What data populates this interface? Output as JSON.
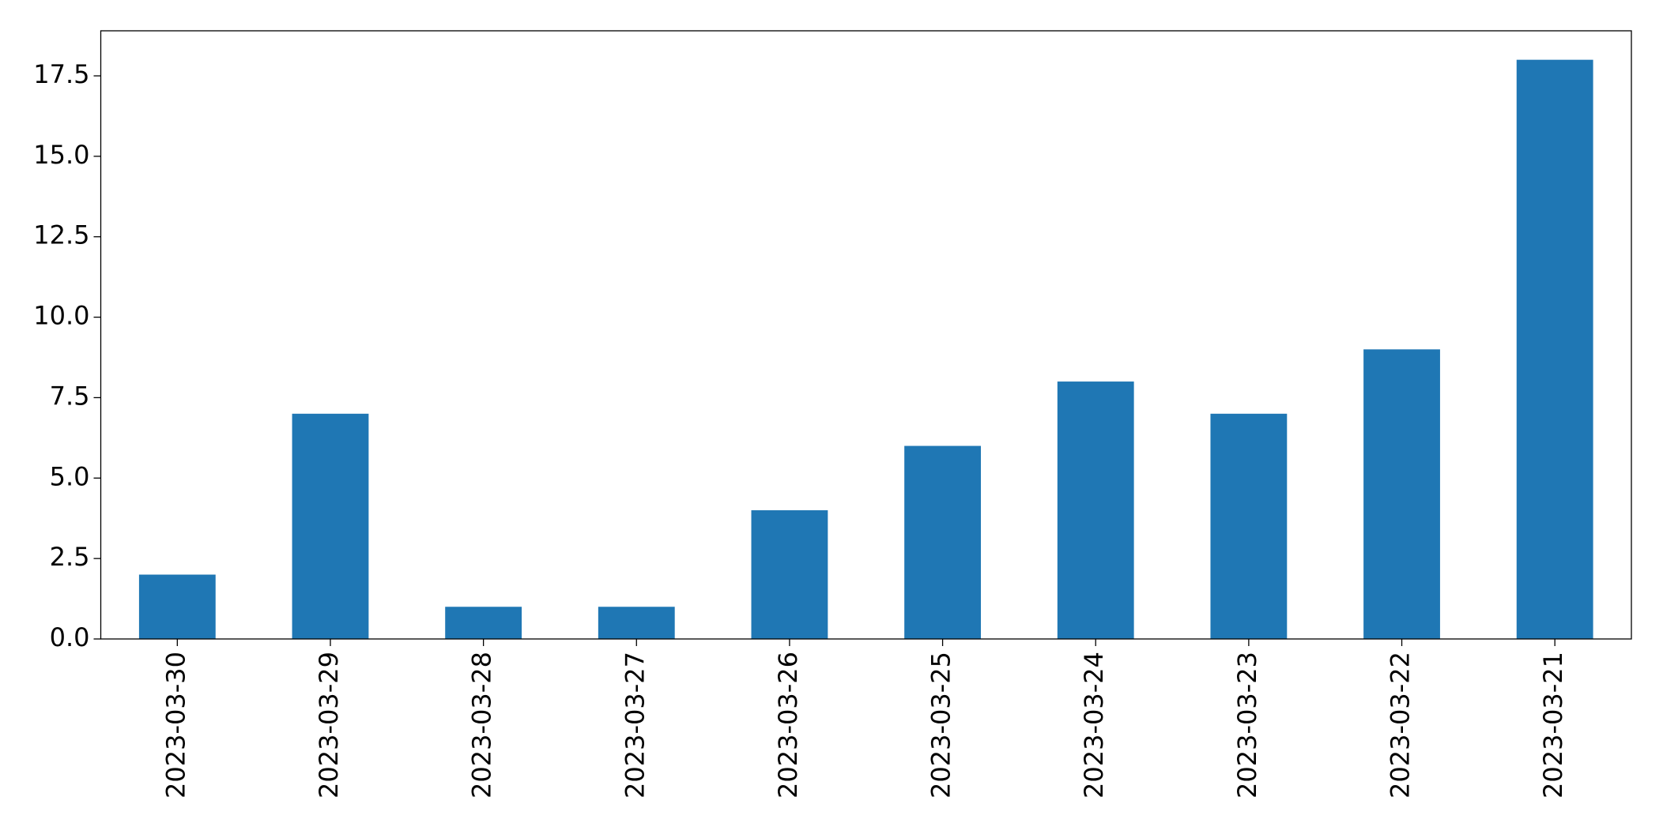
{
  "chart_data": {
    "type": "bar",
    "categories": [
      "2023-03-30",
      "2023-03-29",
      "2023-03-28",
      "2023-03-27",
      "2023-03-26",
      "2023-03-25",
      "2023-03-24",
      "2023-03-23",
      "2023-03-22",
      "2023-03-21"
    ],
    "values": [
      2,
      7,
      1,
      1,
      4,
      6,
      8,
      7,
      9,
      18
    ],
    "color": "#1f77b4",
    "ylim": [
      0,
      18.9
    ],
    "yticks": [
      {
        "value": 0,
        "label": "0.0"
      },
      {
        "value": 2.5,
        "label": "2.5"
      },
      {
        "value": 5,
        "label": "5.0"
      },
      {
        "value": 7.5,
        "label": "7.5"
      },
      {
        "value": 10,
        "label": "10.0"
      },
      {
        "value": 12.5,
        "label": "12.5"
      },
      {
        "value": 15,
        "label": "15.0"
      },
      {
        "value": 17.5,
        "label": "17.5"
      }
    ],
    "grid": false
  }
}
